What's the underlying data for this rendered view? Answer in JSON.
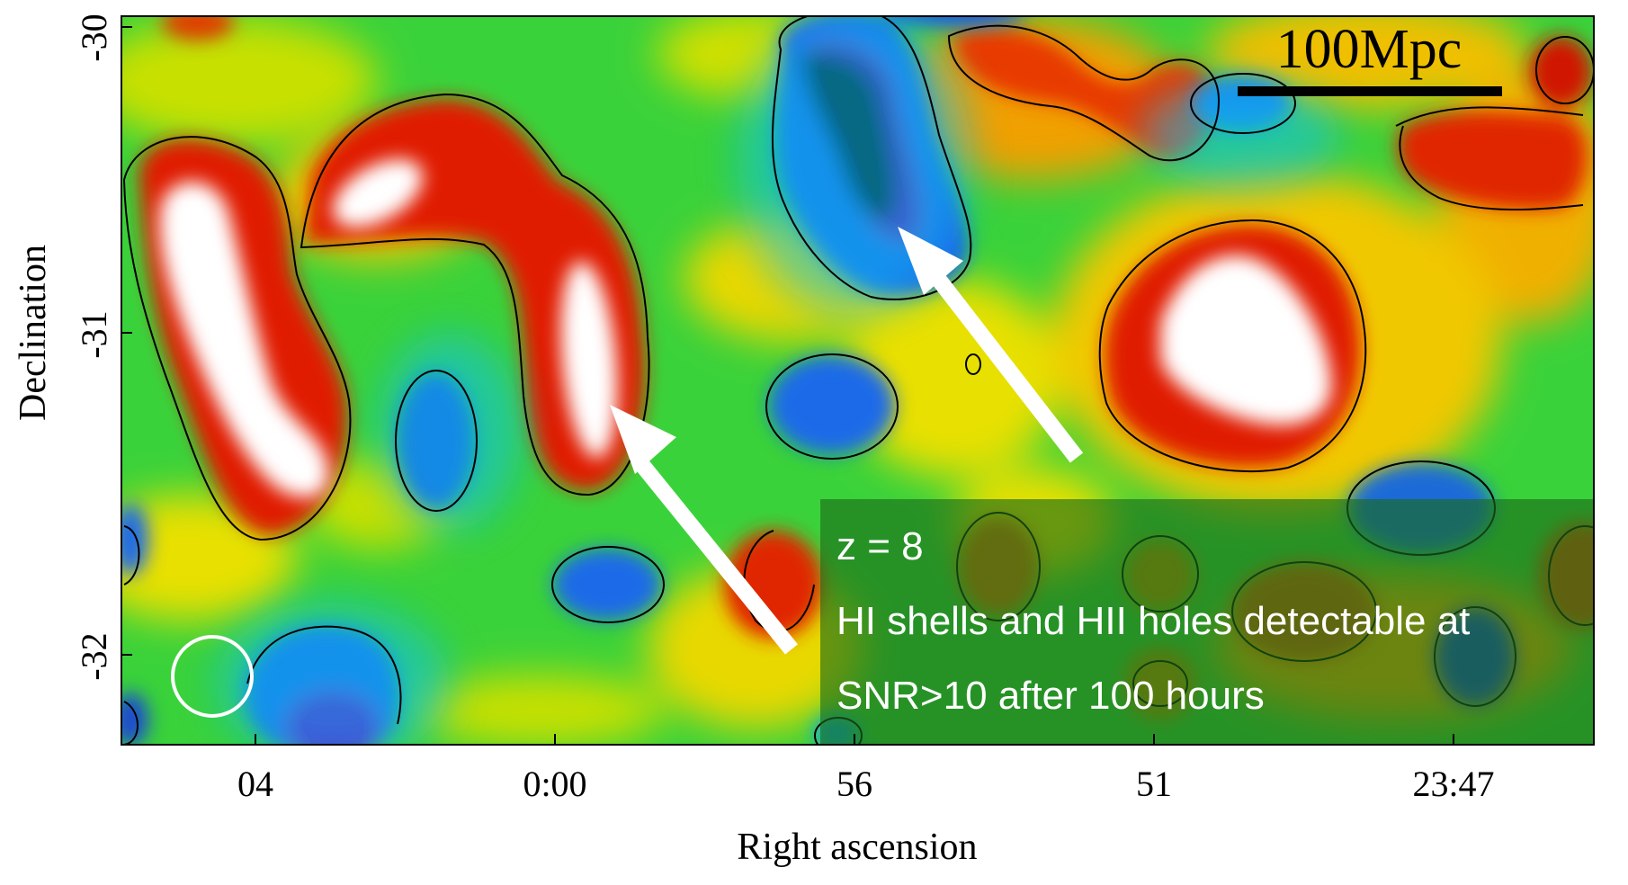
{
  "figure": {
    "scale_bar_label": "100Mpc",
    "x_axis_title": "Right ascension",
    "y_axis_title": "Declination",
    "x_ticks": [
      "04",
      "0:00",
      "56",
      "51",
      "23:47"
    ],
    "y_ticks": [
      "-30",
      "-31",
      "-32"
    ],
    "annotation": {
      "line1": "z = 8",
      "line2": "HI shells and HII holes detectable at",
      "line3": "SNR>10 after 100 hours"
    },
    "colormap_colors": [
      "#000000",
      "#7a00b0",
      "#1060e8",
      "#10c8f0",
      "#20d040",
      "#a8e000",
      "#f8e000",
      "#f8a000",
      "#ee3c00",
      "#c80000",
      "#ffffff"
    ],
    "annotation_box_color": "#1a6a1a",
    "arrow_color": "#ffffff"
  }
}
